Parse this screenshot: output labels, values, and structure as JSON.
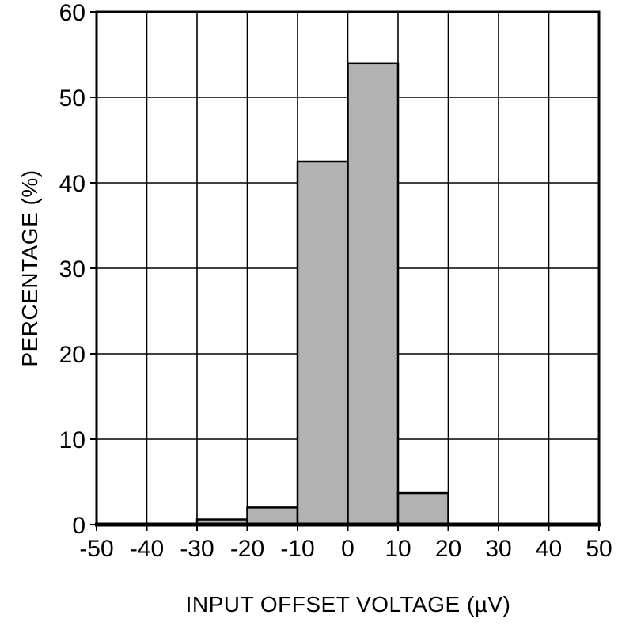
{
  "chart_data": {
    "type": "bar",
    "title": "",
    "xlabel": "INPUT OFFSET VOLTAGE (µV)",
    "ylabel": "PERCENTAGE (%)",
    "xlim": [
      -50,
      50
    ],
    "ylim": [
      0,
      60
    ],
    "x_ticks": [
      -50,
      -40,
      -30,
      -20,
      -10,
      0,
      10,
      20,
      30,
      40,
      50
    ],
    "y_ticks": [
      0,
      10,
      20,
      30,
      40,
      50,
      60
    ],
    "grid": true,
    "legend": "none",
    "bar_color": "#b2b2b2",
    "bar_edge_color": "#000000",
    "bins": [
      {
        "x_start": -30,
        "x_end": -20,
        "value": 0.6
      },
      {
        "x_start": -20,
        "x_end": -10,
        "value": 2.0
      },
      {
        "x_start": -10,
        "x_end": 0,
        "value": 42.5
      },
      {
        "x_start": 0,
        "x_end": 10,
        "value": 54.0
      },
      {
        "x_start": 10,
        "x_end": 20,
        "value": 3.7
      }
    ]
  }
}
